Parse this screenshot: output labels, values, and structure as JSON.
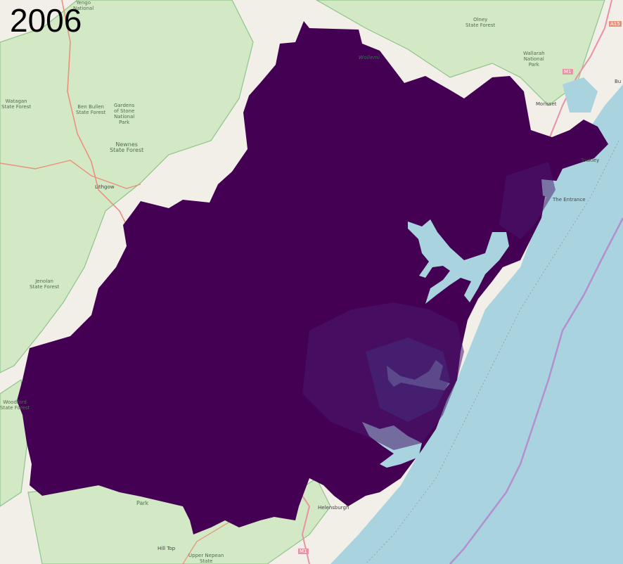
{
  "year_label": "2006",
  "colors": {
    "region_fill": "#440154",
    "water": "#a9d3df",
    "land": "#f2efe9",
    "park": "#d6ebc9",
    "park_border": "#8fc48a",
    "road_major": "#e8927c",
    "road_motorway": "#e892a2",
    "ferry_line": "#b48fd0"
  },
  "map_labels": [
    {
      "name": "label-yengo-national",
      "text": "Yengo\nNational"
    },
    {
      "name": "label-olney-state-forest",
      "text": "Olney\nState Forest"
    },
    {
      "name": "label-wallarah",
      "text": "Wallarah\nNational\nPark"
    },
    {
      "name": "label-watagan",
      "text": "Watagan\nState Forest"
    },
    {
      "name": "label-ben-bullen",
      "text": "Ben Bullen\nState Forest"
    },
    {
      "name": "label-gardens-of-stone",
      "text": "Gardens\nof Stone\nNational\nPark"
    },
    {
      "name": "label-newnes",
      "text": "Newnes\nState Forest"
    },
    {
      "name": "label-lithgow",
      "text": "Lithgow"
    },
    {
      "name": "label-jenolan",
      "text": "Jenolan\nState Forest"
    },
    {
      "name": "label-wollemi",
      "text": "Wollemi"
    },
    {
      "name": "label-morisset",
      "text": "Morisset"
    },
    {
      "name": "label-toukley",
      "text": "Toukley"
    },
    {
      "name": "label-the-entrance",
      "text": "The Entrance"
    },
    {
      "name": "label-helensburgh",
      "text": "Helensburgh"
    },
    {
      "name": "label-park",
      "text": "Park"
    },
    {
      "name": "label-hill-top",
      "text": "Hill Top"
    },
    {
      "name": "label-upper-nepean",
      "text": "Upper Nepean\nState"
    },
    {
      "name": "label-woodford",
      "text": "Woodford\nState Forest"
    },
    {
      "name": "label-m1-north",
      "text": "M1"
    },
    {
      "name": "label-m1-south",
      "text": "M1"
    },
    {
      "name": "label-a15",
      "text": "A15"
    },
    {
      "name": "label-bu",
      "text": "Bu"
    }
  ]
}
